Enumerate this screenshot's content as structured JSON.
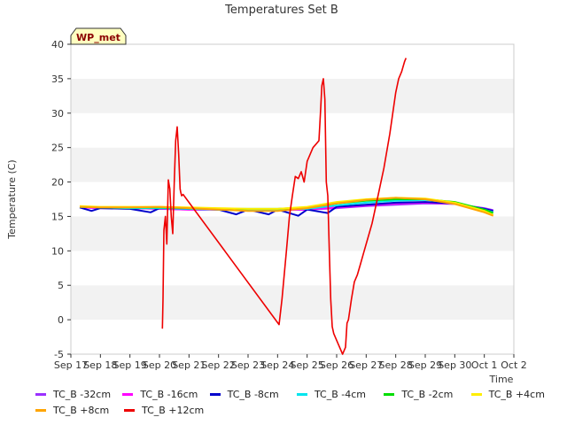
{
  "chart_data": {
    "type": "line",
    "title": "Temperatures Set B",
    "xlabel": "Time",
    "ylabel": "Temperature (C)",
    "ylim": [
      -5,
      40
    ],
    "yticks": [
      -5,
      0,
      5,
      10,
      15,
      20,
      25,
      30,
      35,
      40
    ],
    "xlim": [
      0,
      15
    ],
    "xtick_labels": [
      "Sep 17",
      "Sep 18",
      "Sep 19",
      "Sep 20",
      "Sep 21",
      "Sep 22",
      "Sep 23",
      "Sep 24",
      "Sep 25",
      "Sep 26",
      "Sep 27",
      "Sep 28",
      "Sep 29",
      "Sep 30",
      "Oct 1",
      "Oct 2"
    ],
    "grid": "horizontal bands",
    "annotation": "WP_met",
    "legend_position": "bottom",
    "colors": {
      "TC_B -32cm": "#9b30ff",
      "TC_B -16cm": "#ff00ff",
      "TC_B -8cm": "#0000cc",
      "TC_B -4cm": "#00e5ee",
      "TC_B -2cm": "#00dd00",
      "TC_B +4cm": "#ffee00",
      "TC_B +8cm": "#ffa500",
      "TC_B +12cm": "#ee0000"
    },
    "series": [
      {
        "name": "TC_B -32cm",
        "x": [
          0.3,
          1,
          2,
          3,
          4,
          5,
          6,
          7,
          8,
          9,
          10,
          11,
          12,
          13,
          14,
          14.3
        ],
        "y": [
          16.3,
          16.2,
          16.2,
          16.1,
          16.0,
          16.0,
          15.9,
          15.9,
          16.0,
          16.2,
          16.5,
          16.7,
          16.9,
          16.8,
          16.2,
          15.9
        ]
      },
      {
        "name": "TC_B -16cm",
        "x": [
          0.3,
          1,
          2,
          3,
          4,
          5,
          6,
          7,
          8,
          9,
          10,
          11,
          12,
          13,
          14,
          14.3
        ],
        "y": [
          16.3,
          16.2,
          16.2,
          16.1,
          16.0,
          16.0,
          15.9,
          15.9,
          16.0,
          16.3,
          16.6,
          16.9,
          17.0,
          16.9,
          16.1,
          15.8
        ]
      },
      {
        "name": "TC_B -8cm",
        "x": [
          0.3,
          0.7,
          1,
          2,
          2.7,
          3,
          4,
          5,
          5.6,
          6,
          6.7,
          7,
          7.7,
          8,
          8.7,
          9,
          10,
          11,
          12,
          13,
          14,
          14.3
        ],
        "y": [
          16.3,
          15.8,
          16.2,
          16.1,
          15.6,
          16.2,
          16.1,
          16.0,
          15.3,
          16.0,
          15.3,
          16.0,
          15.1,
          16.0,
          15.5,
          16.4,
          16.7,
          17.0,
          17.1,
          16.9,
          16.1,
          15.8
        ]
      },
      {
        "name": "TC_B -4cm",
        "x": [
          0.3,
          1,
          2,
          3,
          4,
          5,
          6,
          7,
          8,
          9,
          10,
          11,
          12,
          13,
          14,
          14.3
        ],
        "y": [
          16.4,
          16.3,
          16.2,
          16.2,
          16.1,
          16.0,
          16.0,
          16.0,
          16.1,
          16.6,
          17.0,
          17.3,
          17.4,
          17.0,
          16.0,
          15.6
        ]
      },
      {
        "name": "TC_B -2cm",
        "x": [
          0.3,
          1,
          2,
          3,
          4,
          5,
          6,
          7,
          8,
          9,
          10,
          11,
          12,
          13,
          14,
          14.3
        ],
        "y": [
          16.4,
          16.3,
          16.3,
          16.3,
          16.2,
          16.1,
          16.1,
          16.1,
          16.3,
          16.9,
          17.3,
          17.5,
          17.5,
          17.1,
          16.0,
          15.5
        ]
      },
      {
        "name": "TC_B +4cm",
        "x": [
          0.3,
          1,
          2,
          3,
          4,
          5,
          6,
          7,
          8,
          9,
          10,
          11,
          12,
          13,
          14,
          14.3
        ],
        "y": [
          16.5,
          16.4,
          16.4,
          16.4,
          16.3,
          16.2,
          16.1,
          16.1,
          16.4,
          17.1,
          17.5,
          17.7,
          17.6,
          17.0,
          15.8,
          15.2
        ]
      },
      {
        "name": "TC_B +8cm",
        "x": [
          0.3,
          1,
          2,
          3,
          4,
          5,
          6,
          7,
          8,
          9,
          10,
          11,
          12,
          13,
          14,
          14.3
        ],
        "y": [
          16.4,
          16.3,
          16.3,
          16.4,
          16.2,
          16.0,
          15.8,
          15.8,
          16.2,
          16.9,
          17.4,
          17.7,
          17.5,
          16.8,
          15.6,
          15.1
        ]
      },
      {
        "name": "TC_B +12cm",
        "x": [
          3.1,
          3.12,
          3.15,
          3.2,
          3.25,
          3.3,
          3.35,
          3.4,
          3.45,
          3.5,
          3.55,
          3.6,
          3.65,
          3.7,
          3.72,
          3.75,
          3.8,
          7.05,
          7.15,
          7.3,
          7.4,
          7.5,
          7.6,
          7.7,
          7.8,
          7.9,
          8.0,
          8.1,
          8.2,
          8.3,
          8.4,
          8.45,
          8.5,
          8.55,
          8.6,
          8.65,
          8.7,
          8.75,
          8.8,
          8.85,
          8.9,
          9.0,
          9.2,
          9.3,
          9.35,
          9.4,
          9.5,
          9.6,
          9.7,
          9.8,
          9.9,
          10.0,
          10.2,
          10.4,
          10.6,
          10.8,
          11.0,
          11.1,
          11.2,
          11.3,
          11.35
        ],
        "y": [
          -1.3,
          3.0,
          13.0,
          15.0,
          11.0,
          20.3,
          19.0,
          15.0,
          12.5,
          20.0,
          26.0,
          28.0,
          24.0,
          19.0,
          18.5,
          18.0,
          18.2,
          -0.7,
          3.0,
          10.0,
          15.0,
          18.0,
          20.8,
          20.5,
          21.5,
          20.0,
          23.0,
          24.0,
          25.0,
          25.5,
          26.0,
          30.0,
          34.0,
          35.0,
          32.0,
          20.0,
          18.0,
          10.0,
          3.0,
          -1.0,
          -2.0,
          -3.0,
          -5.0,
          -4.0,
          -0.5,
          0.0,
          3.0,
          5.5,
          6.5,
          8.0,
          9.5,
          11.0,
          14.0,
          18.0,
          22.0,
          27.0,
          33.0,
          35.0,
          36.0,
          37.5,
          38.0
        ]
      }
    ]
  }
}
